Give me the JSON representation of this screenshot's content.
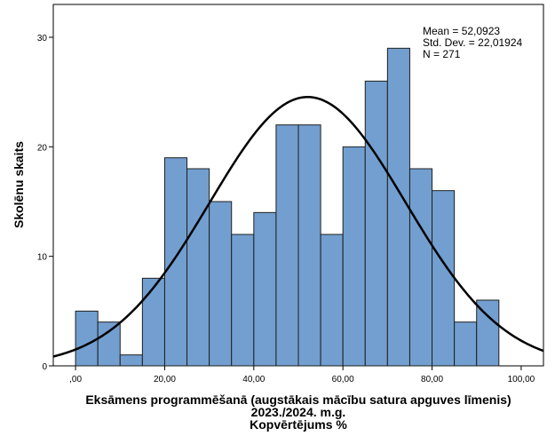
{
  "chart_data": {
    "type": "bar",
    "subtype": "histogram",
    "bin_width": 5,
    "bins": [
      {
        "start": 0,
        "end": 5,
        "count": 5
      },
      {
        "start": 5,
        "end": 10,
        "count": 4
      },
      {
        "start": 10,
        "end": 15,
        "count": 1
      },
      {
        "start": 15,
        "end": 20,
        "count": 8
      },
      {
        "start": 20,
        "end": 25,
        "count": 19
      },
      {
        "start": 25,
        "end": 30,
        "count": 18
      },
      {
        "start": 30,
        "end": 35,
        "count": 15
      },
      {
        "start": 35,
        "end": 40,
        "count": 12
      },
      {
        "start": 40,
        "end": 45,
        "count": 14
      },
      {
        "start": 45,
        "end": 50,
        "count": 22
      },
      {
        "start": 50,
        "end": 55,
        "count": 22
      },
      {
        "start": 55,
        "end": 60,
        "count": 12
      },
      {
        "start": 60,
        "end": 65,
        "count": 20
      },
      {
        "start": 65,
        "end": 70,
        "count": 26
      },
      {
        "start": 70,
        "end": 75,
        "count": 29
      },
      {
        "start": 75,
        "end": 80,
        "count": 18
      },
      {
        "start": 80,
        "end": 85,
        "count": 16
      },
      {
        "start": 85,
        "end": 90,
        "count": 4
      },
      {
        "start": 90,
        "end": 95,
        "count": 6
      }
    ],
    "normal_curve": {
      "mean": 52.0923,
      "std": 22.01924,
      "n": 271
    },
    "xlabel_lines": [
      "Eksāmens programmēšanā (augstākais mācību satura apguves līmenis)",
      "2023./2024. m.g.",
      "Kopvērtējums %"
    ],
    "ylabel": "Skolēnu skaits",
    "xlim": [
      -5,
      105
    ],
    "ylim": [
      0,
      33
    ],
    "x_ticks": [
      0,
      20,
      40,
      60,
      80,
      100
    ],
    "x_tick_labels": [
      ",00",
      "20,00",
      "40,00",
      "60,00",
      "80,00",
      "100,00"
    ],
    "y_ticks": [
      0,
      10,
      20,
      30
    ],
    "y_tick_labels": [
      "0",
      "10",
      "20",
      "30"
    ],
    "stats_text": [
      "Mean = 52,0923",
      "Std. Dev. = 22,01924",
      "N = 271"
    ],
    "grid": false,
    "colors": {
      "bar_fill": "#729fcf",
      "bar_stroke": "#1f1f1f",
      "curve": "#000000"
    }
  }
}
